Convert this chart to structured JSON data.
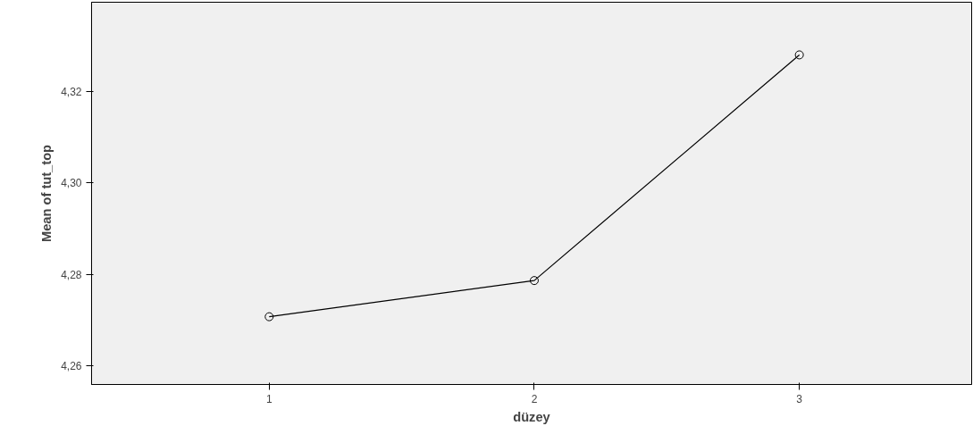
{
  "chart_data": {
    "type": "line",
    "xlabel": "düzey",
    "ylabel": "Mean of tut_top",
    "x": [
      1,
      2,
      3
    ],
    "series": [
      {
        "color": "#000000",
        "values": [
          4.2708,
          4.2787,
          4.328
        ]
      }
    ],
    "xlim": [
      0.33,
      3.65
    ],
    "xticks": [
      1,
      2,
      3
    ],
    "ylim": [
      4.256,
      4.3395
    ],
    "yticks": [
      {
        "value": 4.26,
        "label": "4,26"
      },
      {
        "value": 4.28,
        "label": "4,28"
      },
      {
        "value": 4.3,
        "label": "4,30"
      },
      {
        "value": 4.32,
        "label": "4,32"
      }
    ],
    "grid": false,
    "marker": "circle",
    "line_style": "solid"
  }
}
